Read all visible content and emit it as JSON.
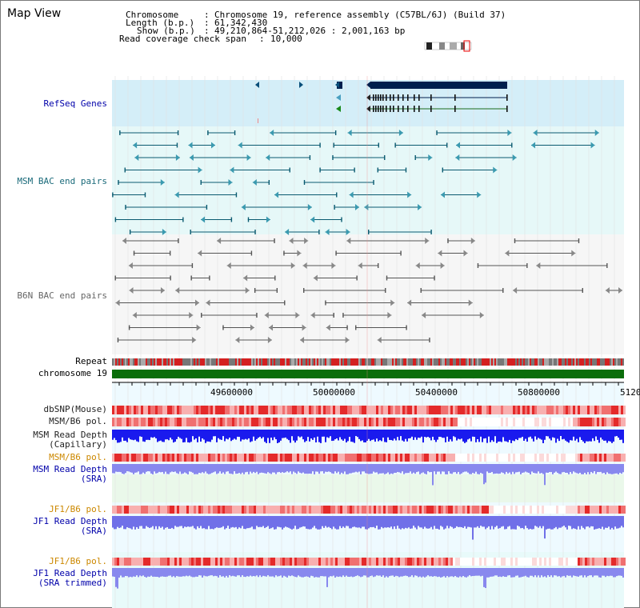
{
  "view_title": "Map View",
  "info": {
    "chromosome_key": "Chromosome",
    "chromosome_val": "Chromosome 19, reference assembly (C57BL/6J) (Build 37)",
    "length_key": "Length (b.p.)",
    "length_val": "61,342,430",
    "show_key": "Show (b.p.)",
    "show_val": "49,210,864-51,212,026 : 2,001,163 bp",
    "coverage_key": "Read coverage check span",
    "coverage_val": "10,000"
  },
  "tracks": {
    "refseq": "RefSeq Genes",
    "msm_bac": "MSM BAC end pairs",
    "b6n_bac": "B6N BAC end pairs",
    "repeat": "Repeat",
    "chromosome": "chromosome 19",
    "dbsnp": "dbSNP(Mouse)",
    "msm_b6_pol_1": "MSM/B6 pol.",
    "msm_depth_cap_1": "MSM Read Depth",
    "msm_depth_cap_2": "(Capillary)",
    "msm_b6_pol_2": "MSM/B6 pol.",
    "msm_depth_sra_1": "MSM Read Depth",
    "msm_depth_sra_2": "(SRA)",
    "jf1_b6_pol_1": "JF1/B6 pol.",
    "jf1_depth_sra_1": "JF1 Read Depth",
    "jf1_depth_sra_2": "(SRA)",
    "jf1_b6_pol_2": "JF1/B6 pol.",
    "jf1_depth_trim_1": "JF1 Read Depth",
    "jf1_depth_trim_2": "(SRA trimmed)"
  },
  "axis_ticks": [
    "49600000",
    "50000000",
    "50400000",
    "50800000",
    "5120"
  ],
  "colors": {
    "refseq_label": "#0000aa",
    "msm_label": "#1a6a7a",
    "b6n_label": "#666666",
    "pol_label": "#cc8800",
    "depth_label": "#0000aa",
    "refseq_bg": "#d4eef8",
    "msm_bg": "#e6f8f8",
    "b6n_bg": "#f6f6f6",
    "chromosome_bar": "#0a6e0a",
    "gene_dark": "#001f4d",
    "gene_mid": "#0a4f7a"
  }
}
